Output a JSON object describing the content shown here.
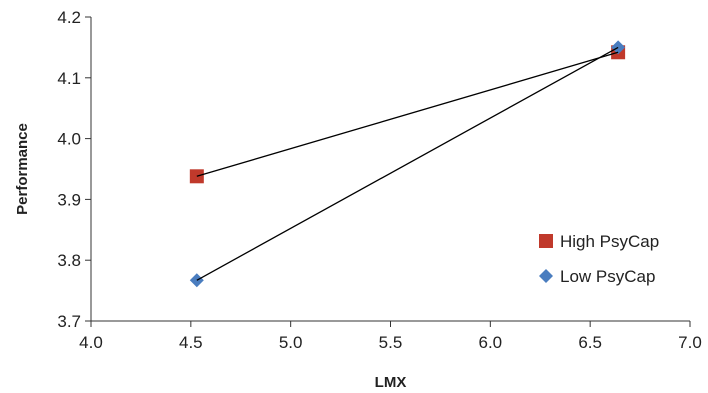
{
  "chart_data": {
    "type": "line",
    "title": "",
    "xlabel": "LMX",
    "ylabel": "Performance",
    "xlim": [
      4.0,
      7.0
    ],
    "ylim": [
      3.7,
      4.2
    ],
    "x_ticks": [
      4.0,
      4.5,
      5.0,
      5.5,
      6.0,
      6.5,
      7.0
    ],
    "x_tick_labels": [
      "4.0",
      "4.5",
      "5.0",
      "5.5",
      "6.0",
      "6.5",
      "7.0"
    ],
    "y_ticks": [
      3.7,
      3.8,
      3.9,
      4.0,
      4.1,
      4.2
    ],
    "y_tick_labels": [
      "3.7",
      "3.8",
      "3.9",
      "4.0",
      "4.1",
      "4.2"
    ],
    "grid": false,
    "legend_position": "right",
    "series": [
      {
        "name": "High PsyCap",
        "marker": "square",
        "color": "#c0392b",
        "line_color": "#000000",
        "points": [
          {
            "x": 4.53,
            "y": 3.938
          },
          {
            "x": 6.64,
            "y": 4.142
          }
        ]
      },
      {
        "name": "Low PsyCap",
        "marker": "diamond",
        "color": "#4a7dbf",
        "line_color": "#000000",
        "points": [
          {
            "x": 4.53,
            "y": 3.767
          },
          {
            "x": 6.64,
            "y": 4.15
          }
        ]
      }
    ]
  }
}
